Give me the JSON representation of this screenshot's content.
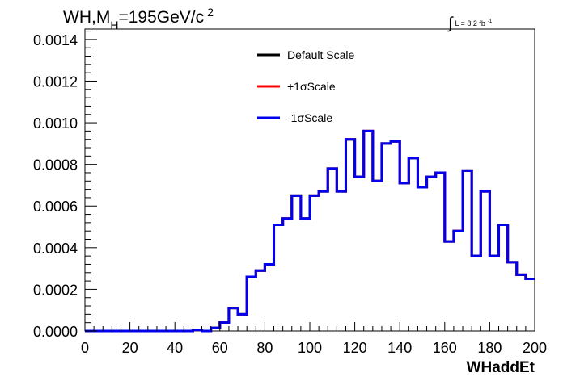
{
  "chart_data": {
    "type": "histogram",
    "title": {
      "prefix": "WH,M",
      "subscript": "H",
      "main": "=195GeV/c",
      "superscript": "2"
    },
    "lumi": {
      "integral": "∫",
      "text": "L = 8.2 fb",
      "superscript": "-1"
    },
    "xlabel": "WHaddEt",
    "ylabel": "",
    "xlim": [
      0,
      200
    ],
    "ylim": [
      0,
      0.00145
    ],
    "x_ticks": [
      0,
      20,
      40,
      60,
      80,
      100,
      120,
      140,
      160,
      180,
      200
    ],
    "x_tick_labels": [
      "0",
      "20",
      "40",
      "60",
      "80",
      "100",
      "120",
      "140",
      "160",
      "180",
      "200"
    ],
    "y_ticks": [
      0,
      0.0002,
      0.0004,
      0.0006,
      0.0008,
      0.001,
      0.0012,
      0.0014
    ],
    "y_tick_labels": [
      "0.0000",
      "0.0002",
      "0.0004",
      "0.0006",
      "0.0008",
      "0.0010",
      "0.0012",
      "0.0014"
    ],
    "bin_edges": [
      0,
      4,
      8,
      12,
      16,
      20,
      24,
      28,
      32,
      36,
      40,
      44,
      48,
      52,
      56,
      60,
      64,
      68,
      72,
      76,
      80,
      84,
      88,
      92,
      96,
      100,
      104,
      108,
      112,
      116,
      120,
      124,
      128,
      132,
      136,
      140,
      144,
      148,
      152,
      156,
      160,
      164,
      168,
      172,
      176,
      180,
      184,
      188,
      192,
      196,
      200
    ],
    "series": [
      {
        "name": "Default Scale",
        "color": "#000000",
        "values": [
          0,
          0,
          0,
          0,
          0,
          0,
          0,
          0,
          0,
          0,
          0,
          0,
          5e-06,
          0,
          1.5e-05,
          4e-05,
          0.00011,
          8e-05,
          0.00026,
          0.00029,
          0.00032,
          0.00051,
          0.00054,
          0.00065,
          0.00054,
          0.00065,
          0.00067,
          0.00078,
          0.00067,
          0.00092,
          0.00074,
          0.00096,
          0.00072,
          0.0009,
          0.00091,
          0.00071,
          0.00083,
          0.00069,
          0.00074,
          0.00076,
          0.00043,
          0.00048,
          0.00077,
          0.00036,
          0.00067,
          0.00036,
          0.00051,
          0.00033,
          0.00027,
          0.00025
        ]
      },
      {
        "name": "+1σScale",
        "color": "#ff0000",
        "values": [
          0,
          0,
          0,
          0,
          0,
          0,
          0,
          0,
          0,
          0,
          0,
          0,
          5e-06,
          0,
          1.5e-05,
          4e-05,
          0.00011,
          8e-05,
          0.00026,
          0.00029,
          0.00032,
          0.00051,
          0.00054,
          0.00065,
          0.00054,
          0.00065,
          0.00067,
          0.00078,
          0.00067,
          0.00092,
          0.00074,
          0.00096,
          0.00072,
          0.0009,
          0.00091,
          0.00071,
          0.00083,
          0.00069,
          0.00074,
          0.00076,
          0.00043,
          0.00048,
          0.00077,
          0.00036,
          0.00067,
          0.00036,
          0.00051,
          0.00033,
          0.00027,
          0.00025
        ]
      },
      {
        "name": "-1σScale",
        "color": "#0000ee",
        "values": [
          0,
          0,
          0,
          0,
          0,
          0,
          0,
          0,
          0,
          0,
          0,
          0,
          5e-06,
          0,
          1.5e-05,
          4e-05,
          0.00011,
          8e-05,
          0.00026,
          0.00029,
          0.00032,
          0.00051,
          0.00054,
          0.00065,
          0.00054,
          0.00065,
          0.00067,
          0.00078,
          0.00067,
          0.00092,
          0.00074,
          0.00096,
          0.00072,
          0.0009,
          0.00091,
          0.00071,
          0.00083,
          0.00069,
          0.00074,
          0.00076,
          0.00043,
          0.00048,
          0.00077,
          0.00036,
          0.00067,
          0.00036,
          0.00051,
          0.00033,
          0.00027,
          0.00025
        ]
      }
    ],
    "legend_position": "top-center",
    "grid": false
  }
}
